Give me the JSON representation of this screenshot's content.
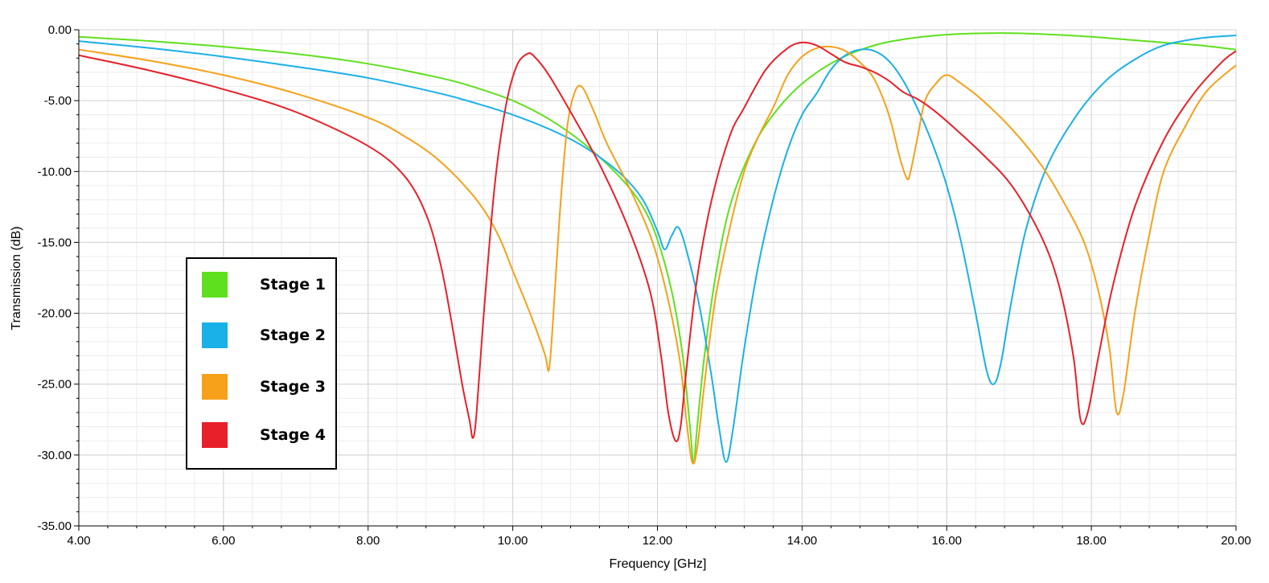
{
  "chart_data": {
    "type": "line",
    "xlabel": "Frequency [GHz]",
    "ylabel": "Transmission (dB)",
    "xlim": [
      4,
      20
    ],
    "ylim": [
      -35,
      0
    ],
    "xticks": [
      "4.00",
      "6.00",
      "8.00",
      "10.00",
      "12.00",
      "14.00",
      "16.00",
      "18.00",
      "20.00"
    ],
    "yticks": [
      "0.00",
      "-5.00",
      "-10.00",
      "-15.00",
      "-20.00",
      "-25.00",
      "-30.00",
      "-35.00"
    ],
    "grid": true,
    "legend_position": "left",
    "series": [
      {
        "name": "Stage 1",
        "color": "#5fe01e",
        "x": [
          4,
          5,
          6,
          7,
          8,
          9,
          9.5,
          10,
          10.5,
          11,
          11.5,
          11.8,
          12,
          12.2,
          12.35,
          12.45,
          12.5,
          12.55,
          12.65,
          12.8,
          13,
          13.3,
          13.6,
          14,
          14.5,
          15,
          15.5,
          16,
          16.5,
          17,
          17.5,
          18,
          18.5,
          19,
          19.5,
          20
        ],
        "y": [
          -0.5,
          -0.8,
          -1.2,
          -1.7,
          -2.4,
          -3.4,
          -4.1,
          -5.0,
          -6.3,
          -8.1,
          -10.5,
          -12.5,
          -14.8,
          -18.5,
          -23,
          -28,
          -30.5,
          -28,
          -23,
          -17.5,
          -12.5,
          -8.5,
          -6.0,
          -3.8,
          -2.1,
          -1.1,
          -0.6,
          -0.35,
          -0.25,
          -0.25,
          -0.35,
          -0.5,
          -0.7,
          -0.9,
          -1.1,
          -1.4
        ]
      },
      {
        "name": "Stage 2",
        "color": "#1ab0e8",
        "x": [
          4,
          5,
          6,
          7,
          8,
          9,
          9.5,
          10,
          10.5,
          11,
          11.5,
          11.8,
          12.0,
          12.1,
          12.2,
          12.3,
          12.45,
          12.6,
          12.75,
          12.85,
          12.95,
          13.05,
          13.2,
          13.4,
          13.6,
          13.8,
          14.0,
          14.2,
          14.4,
          14.6,
          14.8,
          15.0,
          15.2,
          15.4,
          15.6,
          15.8,
          16.0,
          16.2,
          16.4,
          16.55,
          16.65,
          16.75,
          16.9,
          17.1,
          17.4,
          17.8,
          18.2,
          18.6,
          19.0,
          19.5,
          20
        ],
        "y": [
          -0.8,
          -1.3,
          -1.9,
          -2.6,
          -3.4,
          -4.5,
          -5.2,
          -6.0,
          -7.0,
          -8.3,
          -10.2,
          -12.0,
          -14.2,
          -15.5,
          -14.5,
          -14.0,
          -16.5,
          -20,
          -24.5,
          -28,
          -30.5,
          -28,
          -22.5,
          -16.5,
          -12.0,
          -8.5,
          -6.0,
          -4.5,
          -2.8,
          -1.8,
          -1.4,
          -1.5,
          -2.2,
          -3.6,
          -5.6,
          -8.0,
          -11.0,
          -15.0,
          -20.0,
          -24.0,
          -25.0,
          -23.5,
          -19.0,
          -14.0,
          -9.5,
          -6.0,
          -3.6,
          -2.1,
          -1.1,
          -0.6,
          -0.4
        ]
      },
      {
        "name": "Stage 3",
        "color": "#f7a01a",
        "x": [
          4,
          5,
          6,
          7,
          8,
          8.5,
          9,
          9.5,
          9.8,
          10.0,
          10.2,
          10.35,
          10.45,
          10.5,
          10.55,
          10.65,
          10.75,
          10.85,
          10.95,
          11.1,
          11.3,
          11.6,
          11.9,
          12.1,
          12.3,
          12.4,
          12.48,
          12.55,
          12.65,
          12.8,
          13.0,
          13.2,
          13.4,
          13.6,
          13.8,
          14.0,
          14.2,
          14.4,
          14.6,
          14.8,
          15.0,
          15.2,
          15.35,
          15.45,
          15.5,
          15.6,
          15.7,
          15.85,
          16.0,
          16.2,
          16.5,
          16.9,
          17.3,
          17.6,
          17.9,
          18.1,
          18.25,
          18.35,
          18.45,
          18.6,
          18.8,
          19.0,
          19.3,
          19.6,
          20
        ],
        "y": [
          -1.4,
          -2.2,
          -3.2,
          -4.5,
          -6.2,
          -7.5,
          -9.3,
          -12.0,
          -14.5,
          -17.0,
          -19.5,
          -21.5,
          -23.0,
          -24.0,
          -21.0,
          -13.0,
          -7.0,
          -4.5,
          -4.0,
          -5.5,
          -8.0,
          -11.0,
          -14.5,
          -18.0,
          -23.0,
          -27.5,
          -30.5,
          -29.5,
          -25.0,
          -19.0,
          -14.0,
          -10.0,
          -7.5,
          -5.5,
          -3.2,
          -1.9,
          -1.3,
          -1.2,
          -1.5,
          -2.3,
          -3.5,
          -6.0,
          -9.0,
          -10.5,
          -10.0,
          -7.5,
          -5.0,
          -3.8,
          -3.2,
          -3.8,
          -5.0,
          -7.0,
          -9.5,
          -12.0,
          -15.0,
          -18.5,
          -22.5,
          -27.0,
          -25.5,
          -20.0,
          -14.5,
          -10.0,
          -6.8,
          -4.3,
          -2.5
        ]
      },
      {
        "name": "Stage 4",
        "color": "#e8202a",
        "x": [
          4,
          5,
          6,
          7,
          8,
          8.5,
          8.8,
          9.0,
          9.15,
          9.3,
          9.4,
          9.45,
          9.5,
          9.6,
          9.75,
          9.9,
          10.05,
          10.2,
          10.3,
          10.5,
          10.8,
          11.2,
          11.6,
          11.9,
          12.05,
          12.15,
          12.25,
          12.32,
          12.4,
          12.55,
          12.75,
          13.0,
          13.2,
          13.5,
          13.8,
          14.0,
          14.2,
          14.4,
          14.6,
          14.8,
          15.0,
          15.2,
          15.4,
          15.6,
          15.8,
          16.1,
          16.5,
          16.9,
          17.3,
          17.55,
          17.75,
          17.85,
          17.95,
          18.1,
          18.3,
          18.6,
          19.0,
          19.4,
          19.8,
          20
        ],
        "y": [
          -1.8,
          -2.9,
          -4.2,
          -5.8,
          -8.2,
          -10.3,
          -13.0,
          -16.5,
          -20.5,
          -25.0,
          -27.5,
          -28.8,
          -27.0,
          -20.0,
          -11.0,
          -5.5,
          -2.6,
          -1.7,
          -1.9,
          -3.2,
          -5.8,
          -9.5,
          -14.0,
          -18.5,
          -23.0,
          -27.0,
          -29.0,
          -28.0,
          -24.0,
          -17.5,
          -12.0,
          -7.5,
          -5.5,
          -2.8,
          -1.3,
          -0.9,
          -1.1,
          -1.7,
          -2.3,
          -2.6,
          -3.0,
          -3.6,
          -4.4,
          -4.9,
          -5.6,
          -6.9,
          -8.8,
          -11.0,
          -14.5,
          -18.0,
          -23.0,
          -27.5,
          -27.0,
          -23.0,
          -18.0,
          -12.5,
          -7.8,
          -4.6,
          -2.3,
          -1.5
        ]
      }
    ]
  }
}
